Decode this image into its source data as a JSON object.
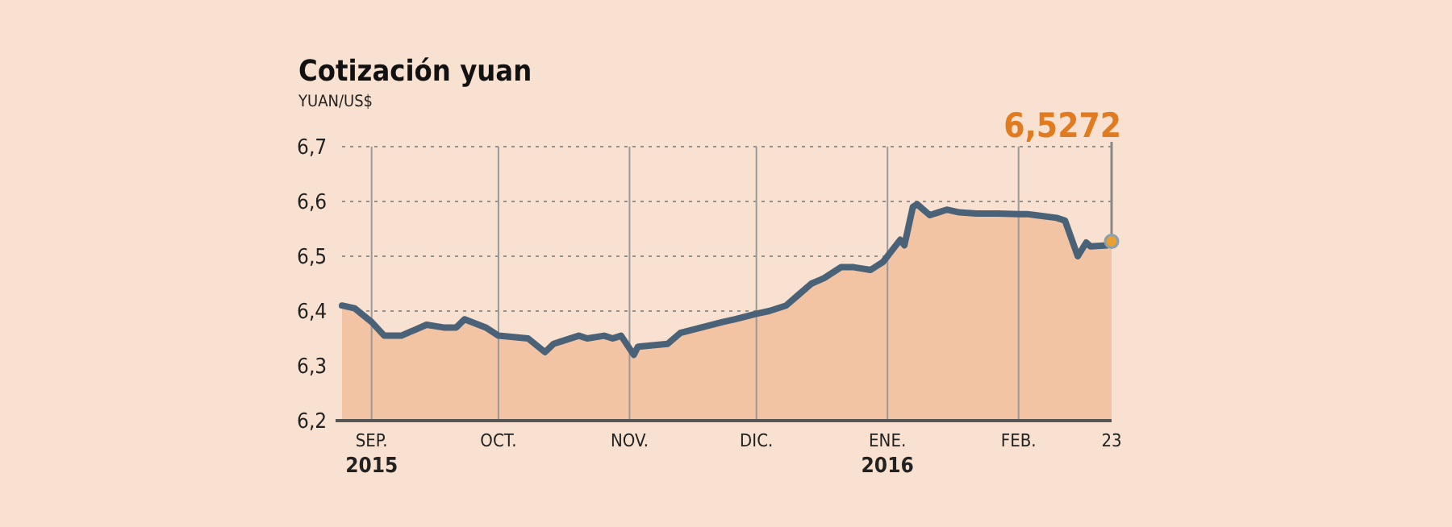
{
  "chart_data": {
    "type": "area",
    "title": "Cotización yuan",
    "subtitle": "YUAN/US$",
    "x": [
      "2015-08-25",
      "2015-08-28",
      "2015-09-01",
      "2015-09-04",
      "2015-09-08",
      "2015-09-11",
      "2015-09-14",
      "2015-09-18",
      "2015-09-21",
      "2015-09-23",
      "2015-09-28",
      "2015-10-01",
      "2015-10-08",
      "2015-10-12",
      "2015-10-14",
      "2015-10-16",
      "2015-10-20",
      "2015-10-22",
      "2015-10-26",
      "2015-10-28",
      "2015-10-30",
      "2015-11-02",
      "2015-11-03",
      "2015-11-10",
      "2015-11-13",
      "2015-11-18",
      "2015-11-23",
      "2015-11-26",
      "2015-12-01",
      "2015-12-04",
      "2015-12-08",
      "2015-12-11",
      "2015-12-14",
      "2015-12-17",
      "2015-12-21",
      "2015-12-24",
      "2015-12-28",
      "2015-12-31",
      "2016-01-04",
      "2016-01-05",
      "2016-01-07",
      "2016-01-08",
      "2016-01-11",
      "2016-01-13",
      "2016-01-15",
      "2016-01-18",
      "2016-01-22",
      "2016-01-27",
      "2016-02-01",
      "2016-02-03",
      "2016-02-05",
      "2016-02-10",
      "2016-02-12",
      "2016-02-15",
      "2016-02-17",
      "2016-02-18",
      "2016-02-22",
      "2016-02-23"
    ],
    "series": [
      {
        "color": "#f2c4a4",
        "values": [
          6.41,
          6.405,
          6.38,
          6.355,
          6.355,
          6.365,
          6.375,
          6.37,
          6.37,
          6.385,
          6.37,
          6.355,
          6.35,
          6.325,
          6.34,
          6.345,
          6.355,
          6.35,
          6.355,
          6.35,
          6.355,
          6.32,
          6.335,
          6.34,
          6.36,
          6.37,
          6.38,
          6.385,
          6.395,
          6.4,
          6.41,
          6.43,
          6.45,
          6.46,
          6.48,
          6.48,
          6.475,
          6.49,
          6.53,
          6.52,
          6.59,
          6.595,
          6.575,
          6.58,
          6.585,
          6.58,
          6.578,
          6.578,
          6.577,
          6.577,
          6.575,
          6.57,
          6.565,
          6.5,
          6.525,
          6.518,
          6.52,
          6.5272
        ]
      },
      {
        "type": "line",
        "color": "#4a6278",
        "values": [
          6.41,
          6.405,
          6.38,
          6.355,
          6.355,
          6.365,
          6.375,
          6.37,
          6.37,
          6.385,
          6.37,
          6.355,
          6.35,
          6.325,
          6.34,
          6.345,
          6.355,
          6.35,
          6.355,
          6.35,
          6.355,
          6.32,
          6.335,
          6.34,
          6.36,
          6.37,
          6.38,
          6.385,
          6.395,
          6.4,
          6.41,
          6.43,
          6.45,
          6.46,
          6.48,
          6.48,
          6.475,
          6.49,
          6.53,
          6.52,
          6.59,
          6.595,
          6.575,
          6.58,
          6.585,
          6.58,
          6.578,
          6.578,
          6.577,
          6.577,
          6.575,
          6.57,
          6.565,
          6.5,
          6.525,
          6.518,
          6.52,
          6.5272
        ]
      }
    ],
    "xlim": [
      "2015-08-25",
      "2016-02-23"
    ],
    "xticks": [
      {
        "value": "2015-09-01",
        "label": "SEP.\n2015"
      },
      {
        "value": "2015-10-01",
        "label": "OCT."
      },
      {
        "value": "2015-11-01",
        "label": "NOV."
      },
      {
        "value": "2015-12-01",
        "label": "DIC."
      },
      {
        "value": "2016-01-01",
        "label": "ENE.\n2016"
      },
      {
        "value": "2016-02-01",
        "label": "FEB."
      },
      {
        "value": "2016-02-23",
        "label": "23"
      }
    ],
    "ylim": [
      6.2,
      6.7
    ],
    "yticks": [
      {
        "value": 6.2,
        "label": "6,2"
      },
      {
        "value": 6.3,
        "label": "6,3"
      },
      {
        "value": 6.4,
        "label": "6,4"
      },
      {
        "value": 6.5,
        "label": "6,5"
      },
      {
        "value": 6.6,
        "label": "6,6"
      },
      {
        "value": 6.7,
        "label": "6,7"
      }
    ],
    "grid": true,
    "marker": "none",
    "line_style": "solid",
    "annotations": [
      {
        "text": "6,5272",
        "x": "2016-02-23",
        "y": 6.5272
      }
    ]
  }
}
